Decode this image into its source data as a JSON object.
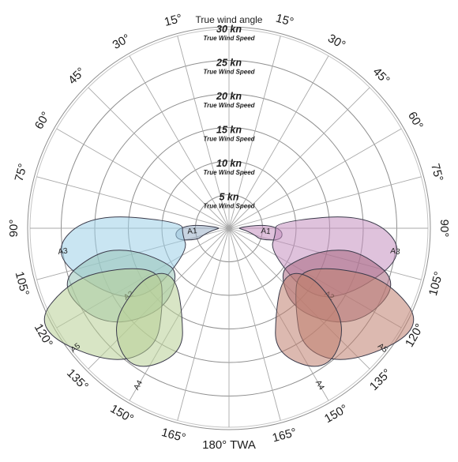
{
  "chart_data": {
    "type": "polar",
    "title": "True wind angle",
    "bottom_label": "180° TWA",
    "radial_rings": [
      {
        "value": "5 kn",
        "caption": "True Wind Speed"
      },
      {
        "value": "10 kn",
        "caption": "True Wind Speed"
      },
      {
        "value": "15 kn",
        "caption": "True Wind Speed"
      },
      {
        "value": "20 kn",
        "caption": "True Wind Speed"
      },
      {
        "value": "25 kn",
        "caption": "True Wind Speed"
      },
      {
        "value": "30 kn",
        "caption": "True Wind Speed"
      }
    ],
    "angle_labels": [
      {
        "angle": -15,
        "text": "15°"
      },
      {
        "angle": 15,
        "text": "15°"
      },
      {
        "angle": -30,
        "text": "30°"
      },
      {
        "angle": 30,
        "text": "30°"
      },
      {
        "angle": -45,
        "text": "45°"
      },
      {
        "angle": 45,
        "text": "45°"
      },
      {
        "angle": -60,
        "text": "60°"
      },
      {
        "angle": 60,
        "text": "60°"
      },
      {
        "angle": -75,
        "text": "75°"
      },
      {
        "angle": 75,
        "text": "75°"
      },
      {
        "angle": -90,
        "text": "90°"
      },
      {
        "angle": 90,
        "text": "90°"
      },
      {
        "angle": -105,
        "text": "105°"
      },
      {
        "angle": 105,
        "text": "105°"
      },
      {
        "angle": -120,
        "text": "120°"
      },
      {
        "angle": 120,
        "text": "120°"
      },
      {
        "angle": -135,
        "text": "135°"
      },
      {
        "angle": 135,
        "text": "135°"
      },
      {
        "angle": -150,
        "text": "150°"
      },
      {
        "angle": 150,
        "text": "150°"
      },
      {
        "angle": -165,
        "text": "165°"
      },
      {
        "angle": 165,
        "text": "165°"
      }
    ],
    "colors": {
      "left": "#9ccfe8",
      "right": "#c490c0"
    },
    "sails": [
      {
        "name": "A1",
        "side": "left",
        "color": "#9ab0c8",
        "polygon": [
          [
            85,
            1
          ],
          [
            97,
            2.5
          ],
          [
            105,
            4
          ],
          [
            110,
            5
          ],
          [
            103,
            8
          ],
          [
            92,
            8
          ],
          [
            84,
            5.5
          ]
        ],
        "label_at": [
          95,
          5.5
        ]
      },
      {
        "name": "A3",
        "side": "left",
        "color": "#9ccfe8",
        "polygon": [
          [
            82,
            7
          ],
          [
            84,
            21
          ],
          [
            98,
            27
          ],
          [
            118,
            21
          ],
          [
            131,
            16
          ],
          [
            119,
            7
          ],
          [
            97,
            7
          ]
        ],
        "label_at": [
          98,
          25
        ]
      },
      {
        "name": "A2",
        "side": "left",
        "color": "#98c4b8",
        "polygon": [
          [
            100,
            20
          ],
          [
            108,
            27
          ],
          [
            128,
            24
          ],
          [
            142,
            16
          ],
          [
            132,
            10
          ],
          [
            116,
            11
          ],
          [
            102,
            15
          ]
        ],
        "label_at": [
          124,
          18
        ]
      },
      {
        "name": "A5",
        "side": "left",
        "color": "#b8cf96",
        "polygon": [
          [
            108,
            25
          ],
          [
            117,
            33
          ],
          [
            139,
            27
          ],
          [
            149,
            21
          ],
          [
            139,
            15
          ],
          [
            122,
            12
          ],
          [
            110,
            17
          ]
        ],
        "label_at": [
          128,
          29
        ]
      },
      {
        "name": "A4",
        "side": "left",
        "color": "#b8cf96",
        "polygon": [
          [
            121,
            16
          ],
          [
            130,
            23
          ],
          [
            146,
            26
          ],
          [
            160,
            20
          ],
          [
            150,
            14
          ],
          [
            134,
            11
          ],
          [
            122,
            12
          ]
        ],
        "label_at": [
          150,
          27
        ]
      },
      {
        "name": "A1",
        "side": "right",
        "color": "#c490c0",
        "polygon": [
          [
            85,
            1
          ],
          [
            97,
            2.5
          ],
          [
            105,
            4
          ],
          [
            110,
            5
          ],
          [
            103,
            8
          ],
          [
            92,
            8
          ],
          [
            84,
            5.5
          ]
        ],
        "label_at": [
          95,
          5.5
        ]
      },
      {
        "name": "A3",
        "side": "right",
        "color": "#c490c0",
        "polygon": [
          [
            82,
            7
          ],
          [
            84,
            21
          ],
          [
            98,
            27
          ],
          [
            118,
            21
          ],
          [
            131,
            16
          ],
          [
            119,
            7
          ],
          [
            97,
            7
          ]
        ],
        "label_at": [
          98,
          25
        ]
      },
      {
        "name": "A2",
        "side": "right",
        "color": "#a86880",
        "polygon": [
          [
            100,
            20
          ],
          [
            108,
            27
          ],
          [
            128,
            24
          ],
          [
            142,
            16
          ],
          [
            132,
            10
          ],
          [
            116,
            11
          ],
          [
            102,
            15
          ]
        ],
        "label_at": [
          124,
          18
        ]
      },
      {
        "name": "A5",
        "side": "right",
        "color": "#c08070",
        "polygon": [
          [
            108,
            25
          ],
          [
            117,
            33
          ],
          [
            139,
            27
          ],
          [
            149,
            21
          ],
          [
            139,
            15
          ],
          [
            122,
            12
          ],
          [
            110,
            17
          ]
        ],
        "label_at": [
          128,
          29
        ]
      },
      {
        "name": "A4",
        "side": "right",
        "color": "#c08070",
        "polygon": [
          [
            121,
            16
          ],
          [
            130,
            23
          ],
          [
            146,
            26
          ],
          [
            160,
            20
          ],
          [
            150,
            14
          ],
          [
            134,
            11
          ],
          [
            122,
            12
          ]
        ],
        "label_at": [
          150,
          27
        ]
      }
    ]
  }
}
